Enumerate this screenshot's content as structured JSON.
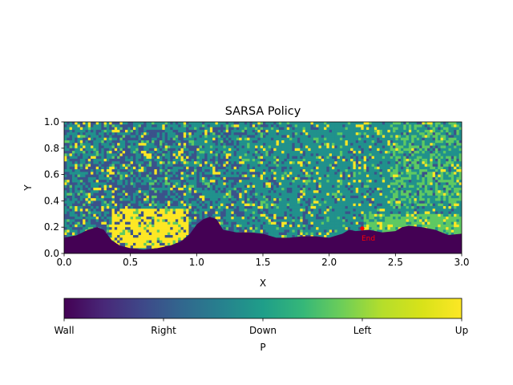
{
  "chart_data": {
    "type": "heatmap",
    "title": "SARSA Policy",
    "xlabel": "X",
    "ylabel": "Y",
    "xlim": [
      0.0,
      3.0
    ],
    "ylim": [
      0.0,
      1.0
    ],
    "x_ticks": [
      "0.0",
      "0.5",
      "1.0",
      "1.5",
      "2.0",
      "2.5",
      "3.0"
    ],
    "y_ticks": [
      "0.0",
      "0.2",
      "0.4",
      "0.6",
      "0.8",
      "1.0"
    ],
    "grid": false,
    "colorbar": {
      "orientation": "horizontal",
      "placement": "bottom",
      "label": "P",
      "ticks": [
        "Wall",
        "Right",
        "Down",
        "Left",
        "Up"
      ],
      "colormap": "viridis",
      "colors": [
        "#440154",
        "#3b528b",
        "#21918c",
        "#5ec962",
        "#fde725"
      ]
    },
    "annotation": {
      "label": "End",
      "x": 2.25,
      "y": 0.19,
      "color": "#ff0000"
    },
    "wall_boundary": {
      "x": [
        0.0,
        0.1,
        0.18,
        0.25,
        0.3,
        0.36,
        0.42,
        0.5,
        0.6,
        0.7,
        0.8,
        0.88,
        0.95,
        1.0,
        1.05,
        1.1,
        1.15,
        1.2,
        1.3,
        1.4,
        1.5,
        1.6,
        1.7,
        1.8,
        1.9,
        2.0,
        2.1,
        2.15,
        2.2,
        2.3,
        2.4,
        2.5,
        2.55,
        2.6,
        2.7,
        2.8,
        2.9,
        3.0
      ],
      "y": [
        0.12,
        0.14,
        0.18,
        0.2,
        0.18,
        0.1,
        0.06,
        0.04,
        0.03,
        0.04,
        0.06,
        0.09,
        0.15,
        0.22,
        0.26,
        0.28,
        0.26,
        0.18,
        0.16,
        0.16,
        0.15,
        0.12,
        0.12,
        0.13,
        0.13,
        0.12,
        0.15,
        0.18,
        0.17,
        0.18,
        0.16,
        0.17,
        0.2,
        0.21,
        0.2,
        0.18,
        0.14,
        0.15
      ]
    }
  }
}
